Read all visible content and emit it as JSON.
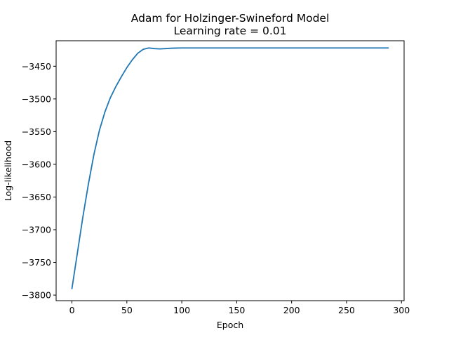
{
  "chart_data": {
    "type": "line",
    "title": "Adam for Holzinger-Swineford Model",
    "subtitle": "Learning rate = 0.01",
    "xlabel": "Epoch",
    "ylabel": "Log-likelihood",
    "xlim": [
      -14.4,
      302.4
    ],
    "ylim": [
      -3808.5,
      -3411
    ],
    "x_ticks": [
      0,
      50,
      100,
      150,
      200,
      250,
      300
    ],
    "y_ticks": [
      -3800,
      -3750,
      -3700,
      -3650,
      -3600,
      -3550,
      -3500,
      -3450
    ],
    "grid": false,
    "line_color": "#1f77b4",
    "series": [
      {
        "x": [
          0,
          5,
          10,
          15,
          20,
          25,
          30,
          35,
          40,
          45,
          50,
          55,
          60,
          65,
          70,
          75,
          80,
          85,
          90,
          95,
          100,
          120,
          150,
          200,
          250,
          288
        ],
        "values": [
          -3790,
          -3735,
          -3680,
          -3630,
          -3585,
          -3548,
          -3520,
          -3498,
          -3481,
          -3466,
          -3452,
          -3440,
          -3430,
          -3424,
          -3422,
          -3423,
          -3423.5,
          -3423,
          -3422.5,
          -3422.2,
          -3422,
          -3422,
          -3422,
          -3422,
          -3422,
          -3422
        ]
      }
    ]
  }
}
